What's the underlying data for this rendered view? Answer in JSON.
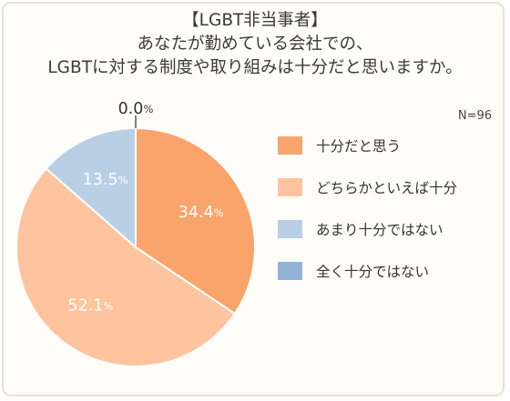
{
  "title": {
    "line1": "【LGBT非当事者】",
    "line2": "あなたが勤めている会社での、",
    "line3": "LGBTに対する制度や取り組みは十分だと思いますか。"
  },
  "sample_size": "N=96",
  "chart_data": {
    "type": "pie",
    "title": "【LGBT非当事者】あなたが勤めている会社での、LGBTに対する制度や取り組みは十分だと思いますか。",
    "start": "12 o'clock, clockwise",
    "slices": [
      {
        "label": "十分だと思う",
        "value": 34.4,
        "display": "34.4",
        "color": "#f9a46a",
        "text_color": "#ffffff"
      },
      {
        "label": "どちらかといえば十分",
        "value": 52.1,
        "display": "52.1",
        "color": "#ffc49d",
        "text_color": "#ffffff"
      },
      {
        "label": "あまり十分ではない",
        "value": 13.5,
        "display": "13.5",
        "color": "#b9cfe6",
        "text_color": "#ffffff"
      },
      {
        "label": "全く十分ではない",
        "value": 0.0,
        "display": "0.0",
        "color": "#93b3d6",
        "text_color": "#333333"
      }
    ],
    "unit": "%"
  }
}
